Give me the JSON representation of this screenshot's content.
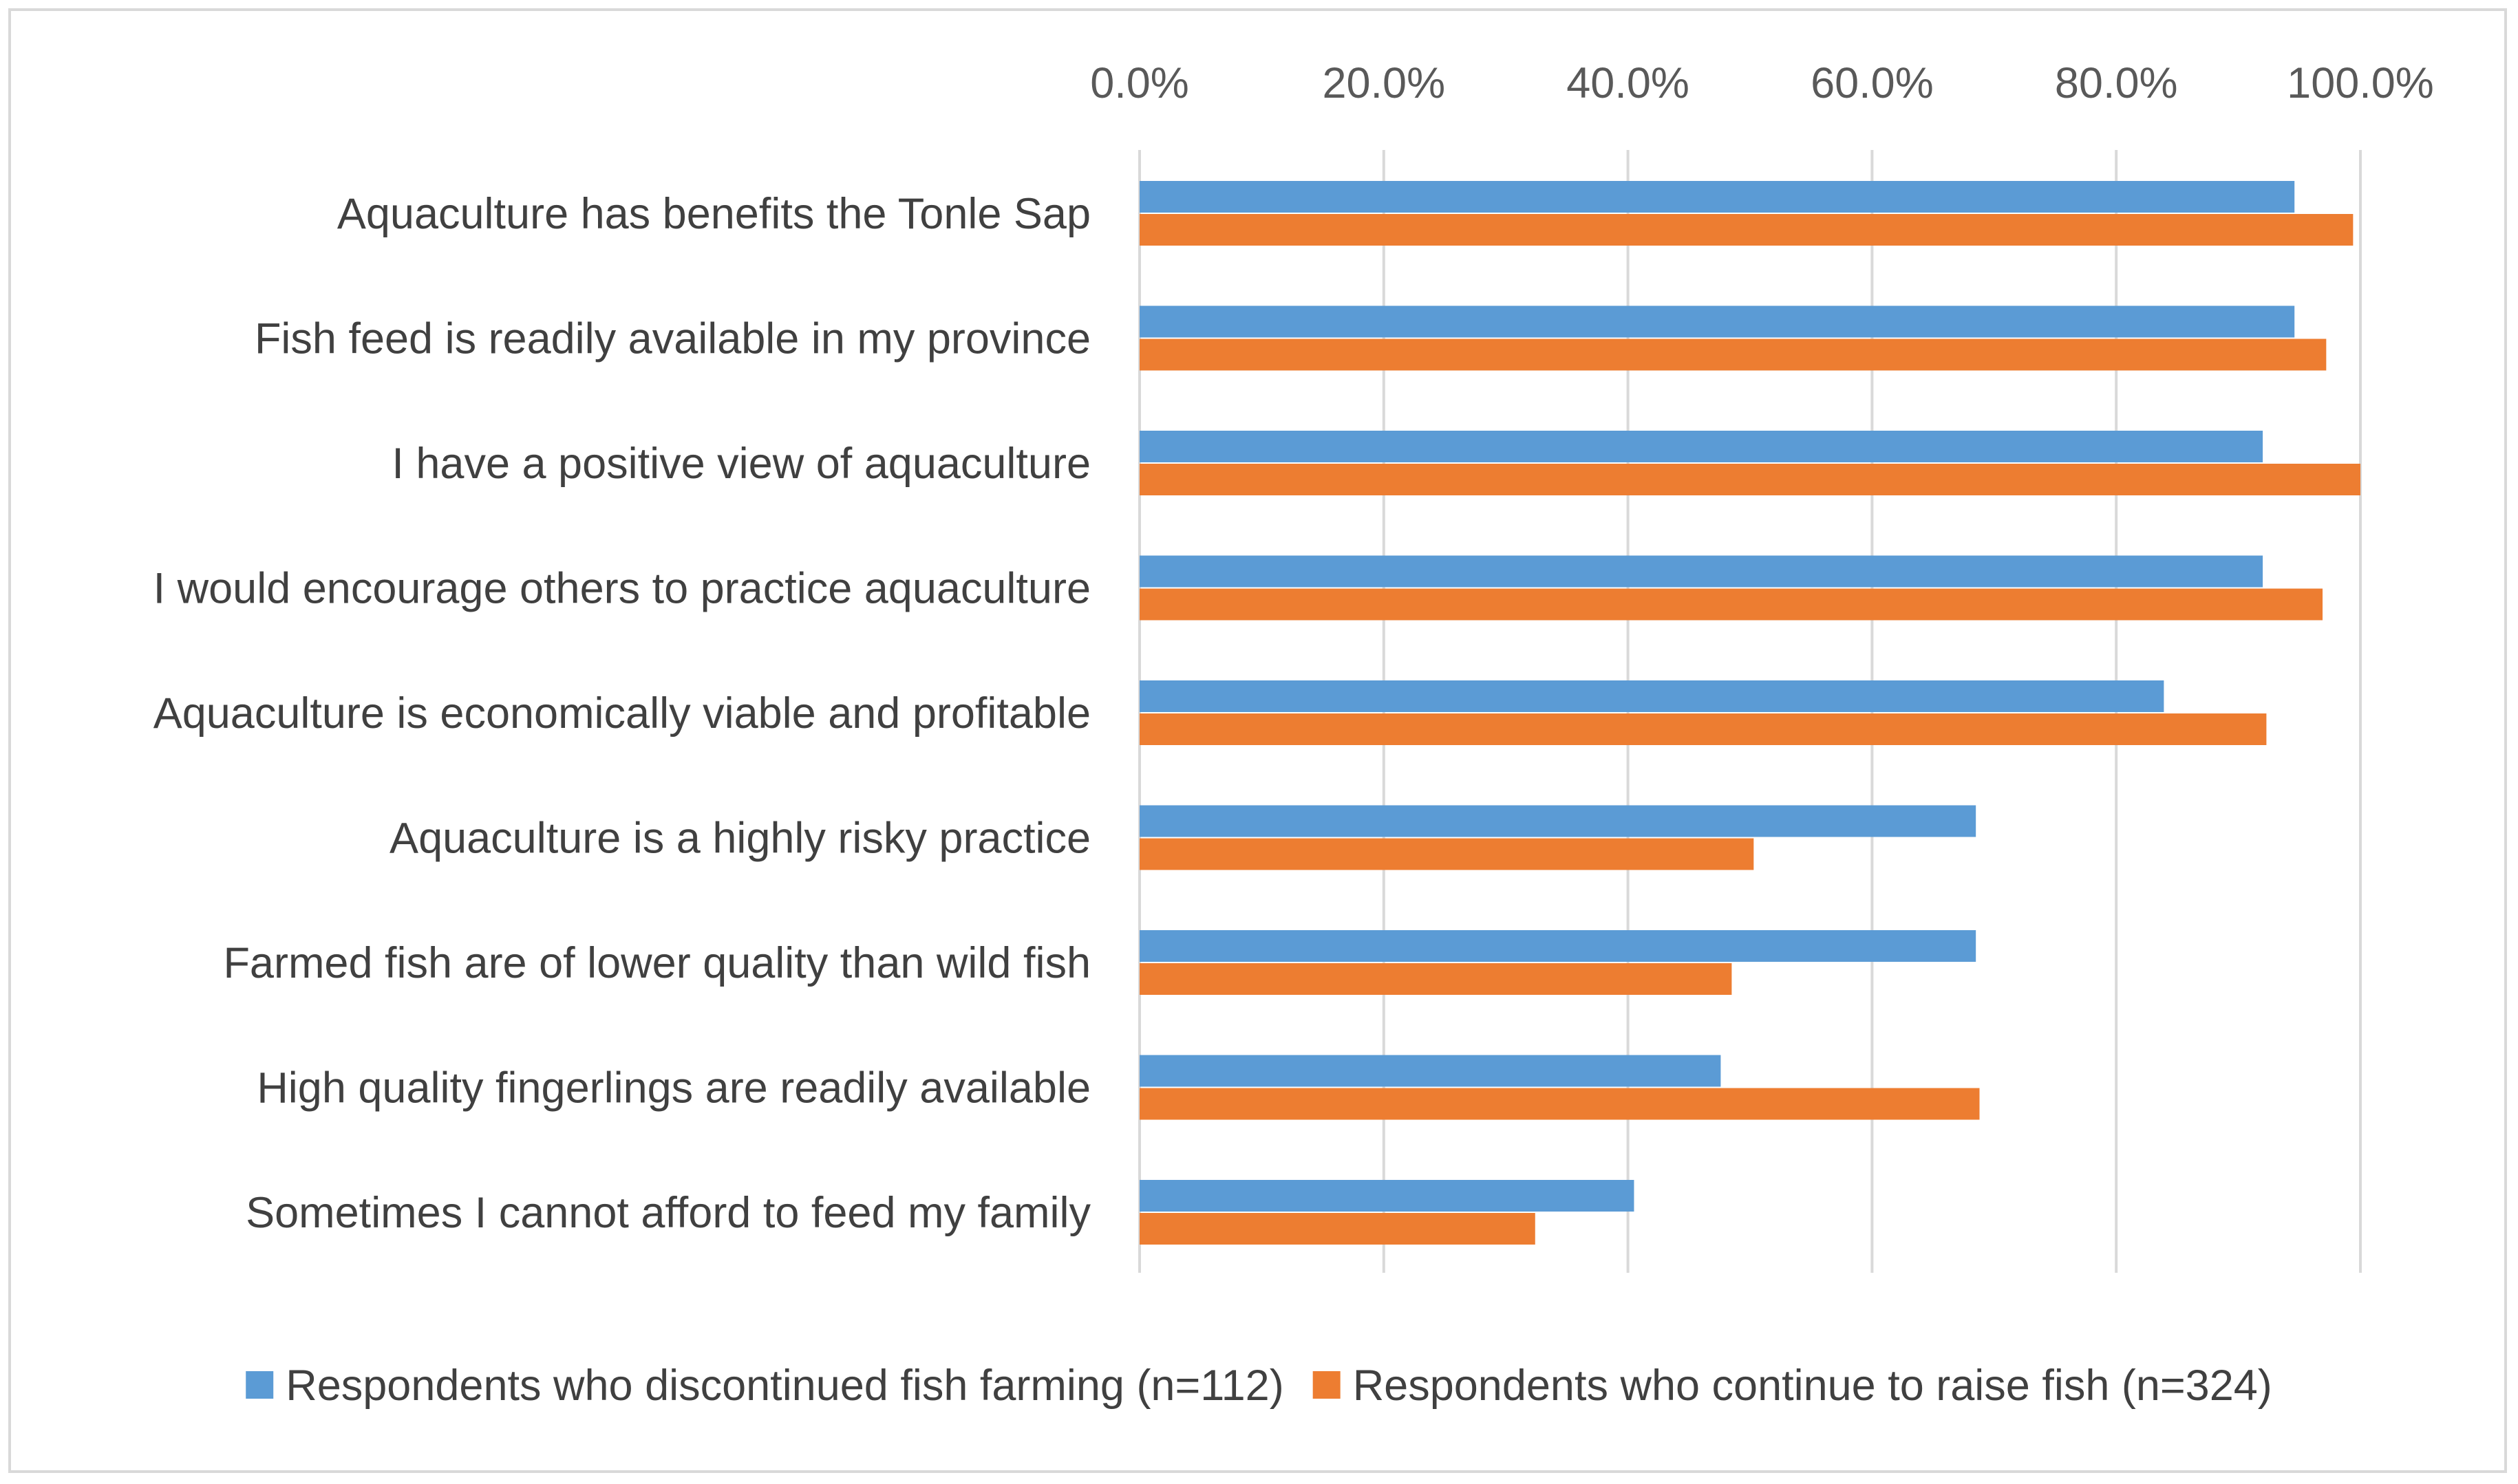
{
  "chart_data": {
    "type": "bar",
    "orientation": "horizontal",
    "title": "",
    "xlabel": "",
    "ylabel": "",
    "xlim": [
      0,
      100
    ],
    "grid": true,
    "ticks": [
      "0.0%",
      "20.0%",
      "40.0%",
      "60.0%",
      "80.0%",
      "100.0%"
    ],
    "tick_values": [
      0,
      20,
      40,
      60,
      80,
      100
    ],
    "axis_position": "top",
    "legend_position": "bottom",
    "categories": [
      "Aquaculture has benefits the Tonle Sap",
      "Fish feed is readily available in my province",
      "I have a positive view of aquaculture",
      "I would encourage others to practice aquaculture",
      "Aquaculture is economically viable and profitable",
      "Aquaculture is a highly risky practice",
      "Farmed fish are of lower quality than wild fish",
      "High quality fingerlings are readily available",
      "Sometimes I cannot afford to feed my family"
    ],
    "series": [
      {
        "name": "Respondents who discontinued fish farming (n=112)",
        "color": "#5b9bd5",
        "values": [
          94.6,
          94.6,
          92.0,
          92.0,
          83.9,
          68.5,
          68.5,
          47.6,
          40.5
        ]
      },
      {
        "name": "Respondents who continue to raise fish (n=324)",
        "color": "#ed7d31",
        "values": [
          99.4,
          97.2,
          100.0,
          96.9,
          92.3,
          50.3,
          48.5,
          68.8,
          32.4
        ]
      }
    ]
  }
}
